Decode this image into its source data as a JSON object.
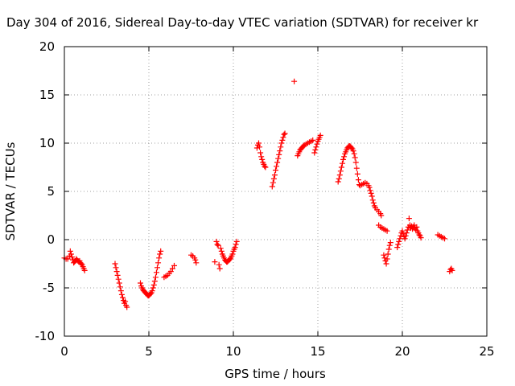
{
  "chart_data": {
    "type": "scatter",
    "title": "Day 304 of 2016, Sidereal Day-to-day VTEC variation (SDTVAR) for receiver kr",
    "xlabel": "GPS time / hours",
    "ylabel": "SDTVAR / TECUs",
    "xlim": [
      0,
      25
    ],
    "ylim": [
      -10,
      20
    ],
    "xticks": [
      0,
      5,
      10,
      15,
      20,
      25
    ],
    "yticks": [
      -10,
      -5,
      0,
      5,
      10,
      15,
      20
    ],
    "grid": true,
    "marker": "plus",
    "color": "#ff0000",
    "series": [
      {
        "points": [
          [
            0.0,
            -1.9
          ],
          [
            0.1,
            -2.0
          ],
          [
            0.2,
            -2.0
          ],
          [
            0.3,
            -1.7
          ],
          [
            0.35,
            -1.2
          ],
          [
            0.4,
            -1.5
          ],
          [
            0.45,
            -1.8
          ],
          [
            0.5,
            -2.1
          ],
          [
            0.55,
            -2.4
          ],
          [
            0.6,
            -2.3
          ],
          [
            0.65,
            -2.2
          ],
          [
            0.7,
            -2.0
          ],
          [
            0.75,
            -2.1
          ],
          [
            0.8,
            -2.2
          ],
          [
            0.85,
            -2.3
          ],
          [
            0.9,
            -2.2
          ],
          [
            0.95,
            -2.4
          ],
          [
            1.0,
            -2.5
          ],
          [
            1.05,
            -2.6
          ],
          [
            1.1,
            -2.8
          ],
          [
            1.15,
            -3.0
          ],
          [
            1.2,
            -3.2
          ],
          [
            3.0,
            -2.5
          ],
          [
            3.05,
            -2.9
          ],
          [
            3.1,
            -3.3
          ],
          [
            3.15,
            -3.7
          ],
          [
            3.2,
            -4.1
          ],
          [
            3.25,
            -4.5
          ],
          [
            3.3,
            -4.9
          ],
          [
            3.35,
            -5.3
          ],
          [
            3.4,
            -5.7
          ],
          [
            3.45,
            -6.0
          ],
          [
            3.5,
            -6.3
          ],
          [
            3.55,
            -6.6
          ],
          [
            3.6,
            -6.4
          ],
          [
            3.65,
            -6.8
          ],
          [
            3.7,
            -7.0
          ],
          [
            4.5,
            -4.5
          ],
          [
            4.55,
            -4.8
          ],
          [
            4.6,
            -5.0
          ],
          [
            4.65,
            -5.2
          ],
          [
            4.7,
            -5.3
          ],
          [
            4.75,
            -5.4
          ],
          [
            4.8,
            -5.5
          ],
          [
            4.85,
            -5.6
          ],
          [
            4.9,
            -5.7
          ],
          [
            4.95,
            -5.8
          ],
          [
            5.0,
            -5.8
          ],
          [
            5.05,
            -5.7
          ],
          [
            5.1,
            -5.6
          ],
          [
            5.15,
            -5.5
          ],
          [
            5.2,
            -5.3
          ],
          [
            5.25,
            -5.0
          ],
          [
            5.3,
            -4.7
          ],
          [
            5.35,
            -4.3
          ],
          [
            5.4,
            -3.9
          ],
          [
            5.45,
            -3.4
          ],
          [
            5.5,
            -2.9
          ],
          [
            5.55,
            -2.4
          ],
          [
            5.6,
            -1.9
          ],
          [
            5.65,
            -1.5
          ],
          [
            5.7,
            -1.2
          ],
          [
            5.9,
            -3.9
          ],
          [
            6.0,
            -3.8
          ],
          [
            6.1,
            -3.7
          ],
          [
            6.2,
            -3.5
          ],
          [
            6.3,
            -3.3
          ],
          [
            6.4,
            -3.0
          ],
          [
            6.5,
            -2.7
          ],
          [
            7.5,
            -1.6
          ],
          [
            7.6,
            -1.7
          ],
          [
            7.7,
            -1.9
          ],
          [
            7.75,
            -2.1
          ],
          [
            7.8,
            -2.4
          ],
          [
            8.9,
            -2.3
          ],
          [
            9.0,
            -0.2
          ],
          [
            9.05,
            -0.5
          ],
          [
            9.1,
            -0.6
          ],
          [
            9.15,
            -2.6
          ],
          [
            9.2,
            -3.0
          ],
          [
            9.25,
            -0.9
          ],
          [
            9.3,
            -1.2
          ],
          [
            9.35,
            -1.5
          ],
          [
            9.4,
            -1.7
          ],
          [
            9.45,
            -1.9
          ],
          [
            9.5,
            -2.1
          ],
          [
            9.55,
            -2.2
          ],
          [
            9.6,
            -2.3
          ],
          [
            9.65,
            -2.3
          ],
          [
            9.7,
            -2.2
          ],
          [
            9.75,
            -2.1
          ],
          [
            9.8,
            -2.0
          ],
          [
            9.85,
            -1.9
          ],
          [
            9.9,
            -1.7
          ],
          [
            9.95,
            -1.5
          ],
          [
            10.0,
            -1.2
          ],
          [
            10.05,
            -1.0
          ],
          [
            10.1,
            -0.8
          ],
          [
            10.15,
            -0.5
          ],
          [
            10.2,
            -0.2
          ],
          [
            11.4,
            9.5
          ],
          [
            11.45,
            9.8
          ],
          [
            11.5,
            10.0
          ],
          [
            11.55,
            9.6
          ],
          [
            11.6,
            9.0
          ],
          [
            11.65,
            8.6
          ],
          [
            11.7,
            8.3
          ],
          [
            11.75,
            8.0
          ],
          [
            11.8,
            7.8
          ],
          [
            11.85,
            7.6
          ],
          [
            11.9,
            7.5
          ],
          [
            12.3,
            5.5
          ],
          [
            12.35,
            5.9
          ],
          [
            12.4,
            6.3
          ],
          [
            12.45,
            6.7
          ],
          [
            12.5,
            7.2
          ],
          [
            12.55,
            7.6
          ],
          [
            12.6,
            8.0
          ],
          [
            12.65,
            8.4
          ],
          [
            12.7,
            8.8
          ],
          [
            12.75,
            9.2
          ],
          [
            12.8,
            9.6
          ],
          [
            12.85,
            10.0
          ],
          [
            12.9,
            10.3
          ],
          [
            12.95,
            10.6
          ],
          [
            13.0,
            10.9
          ],
          [
            13.05,
            11.0
          ],
          [
            13.6,
            16.4
          ],
          [
            13.8,
            8.7
          ],
          [
            13.85,
            8.9
          ],
          [
            13.9,
            9.1
          ],
          [
            13.95,
            9.3
          ],
          [
            14.0,
            9.4
          ],
          [
            14.05,
            9.5
          ],
          [
            14.1,
            9.6
          ],
          [
            14.15,
            9.7
          ],
          [
            14.2,
            9.8
          ],
          [
            14.3,
            9.9
          ],
          [
            14.4,
            10.0
          ],
          [
            14.5,
            10.1
          ],
          [
            14.6,
            10.2
          ],
          [
            14.7,
            10.3
          ],
          [
            14.8,
            9.0
          ],
          [
            14.85,
            9.3
          ],
          [
            14.9,
            9.6
          ],
          [
            14.95,
            9.9
          ],
          [
            15.0,
            10.2
          ],
          [
            15.05,
            10.4
          ],
          [
            15.1,
            10.6
          ],
          [
            15.15,
            10.8
          ],
          [
            16.2,
            6.0
          ],
          [
            16.25,
            6.3
          ],
          [
            16.3,
            6.7
          ],
          [
            16.35,
            7.1
          ],
          [
            16.4,
            7.5
          ],
          [
            16.45,
            7.9
          ],
          [
            16.5,
            8.3
          ],
          [
            16.55,
            8.6
          ],
          [
            16.6,
            8.9
          ],
          [
            16.65,
            9.1
          ],
          [
            16.7,
            9.3
          ],
          [
            16.75,
            9.5
          ],
          [
            16.8,
            9.6
          ],
          [
            16.85,
            9.7
          ],
          [
            16.9,
            9.7
          ],
          [
            16.95,
            9.6
          ],
          [
            17.0,
            9.5
          ],
          [
            17.05,
            9.4
          ],
          [
            17.1,
            9.2
          ],
          [
            17.15,
            8.9
          ],
          [
            17.2,
            8.5
          ],
          [
            17.25,
            8.0
          ],
          [
            17.3,
            7.4
          ],
          [
            17.35,
            6.8
          ],
          [
            17.4,
            6.2
          ],
          [
            17.45,
            5.7
          ],
          [
            17.5,
            5.6
          ],
          [
            17.6,
            5.7
          ],
          [
            17.7,
            5.8
          ],
          [
            17.8,
            5.9
          ],
          [
            17.9,
            5.8
          ],
          [
            18.0,
            5.6
          ],
          [
            18.05,
            5.4
          ],
          [
            18.1,
            5.1
          ],
          [
            18.15,
            4.8
          ],
          [
            18.2,
            4.5
          ],
          [
            18.25,
            4.1
          ],
          [
            18.3,
            3.8
          ],
          [
            18.35,
            3.5
          ],
          [
            18.4,
            3.3
          ],
          [
            18.5,
            3.1
          ],
          [
            18.6,
            2.9
          ],
          [
            18.7,
            2.7
          ],
          [
            18.75,
            2.5
          ],
          [
            18.6,
            1.5
          ],
          [
            18.7,
            1.3
          ],
          [
            18.8,
            1.2
          ],
          [
            18.9,
            1.1
          ],
          [
            19.0,
            1.0
          ],
          [
            19.1,
            0.9
          ],
          [
            18.9,
            -1.6
          ],
          [
            18.95,
            -1.9
          ],
          [
            19.0,
            -2.2
          ],
          [
            19.05,
            -2.5
          ],
          [
            19.1,
            -2.0
          ],
          [
            19.15,
            -1.5
          ],
          [
            19.2,
            -1.0
          ],
          [
            19.25,
            -0.6
          ],
          [
            19.3,
            -0.3
          ],
          [
            19.7,
            -0.8
          ],
          [
            19.75,
            -0.5
          ],
          [
            19.8,
            -0.2
          ],
          [
            19.85,
            0.1
          ],
          [
            19.9,
            0.4
          ],
          [
            19.95,
            0.7
          ],
          [
            20.0,
            0.9
          ],
          [
            20.05,
            0.6
          ],
          [
            20.1,
            0.3
          ],
          [
            20.15,
            0.1
          ],
          [
            20.2,
            0.4
          ],
          [
            20.25,
            0.7
          ],
          [
            20.3,
            1.0
          ],
          [
            20.35,
            1.3
          ],
          [
            20.4,
            2.2
          ],
          [
            20.45,
            1.5
          ],
          [
            20.5,
            1.2
          ],
          [
            20.55,
            1.4
          ],
          [
            20.6,
            1.1
          ],
          [
            20.65,
            1.3
          ],
          [
            20.7,
            1.5
          ],
          [
            20.75,
            1.2
          ],
          [
            20.8,
            1.0
          ],
          [
            20.85,
            1.3
          ],
          [
            20.9,
            0.9
          ],
          [
            20.95,
            0.7
          ],
          [
            21.0,
            0.5
          ],
          [
            21.05,
            0.4
          ],
          [
            21.1,
            0.2
          ],
          [
            22.1,
            0.5
          ],
          [
            22.2,
            0.4
          ],
          [
            22.3,
            0.3
          ],
          [
            22.4,
            0.2
          ],
          [
            22.5,
            0.1
          ],
          [
            22.8,
            -3.3
          ],
          [
            22.85,
            -3.1
          ],
          [
            22.9,
            -3.0
          ],
          [
            22.95,
            -3.2
          ]
        ]
      }
    ]
  }
}
